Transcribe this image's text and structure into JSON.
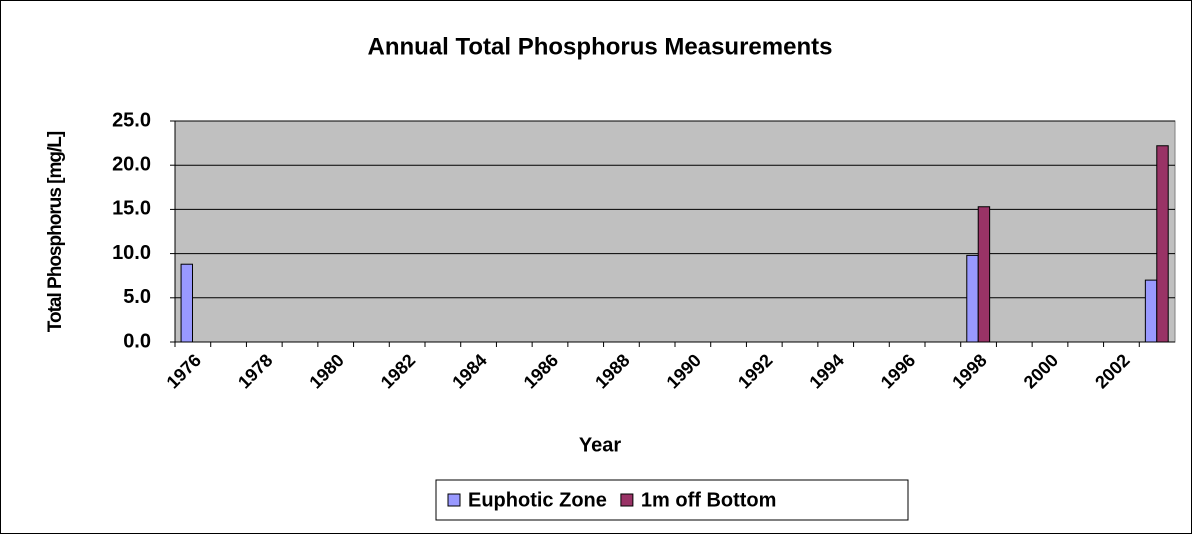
{
  "chart_data": {
    "type": "bar",
    "title": "Annual Total Phosphorus Measurements",
    "x_label": "Year",
    "y_label": "Total Phosphorus [mg/L]",
    "categories": [
      "1976",
      null,
      "1978",
      null,
      "1980",
      null,
      "1982",
      null,
      "1984",
      null,
      "1986",
      null,
      "1988",
      null,
      "1990",
      null,
      "1992",
      null,
      "1994",
      null,
      "1996",
      null,
      "1998",
      null,
      "2000",
      null,
      "2002",
      null
    ],
    "series": [
      {
        "name": "Euphotic Zone",
        "color": "#9999ff",
        "values": [
          8.8,
          null,
          null,
          null,
          null,
          null,
          null,
          null,
          null,
          null,
          null,
          null,
          null,
          null,
          null,
          null,
          null,
          null,
          null,
          null,
          null,
          null,
          9.8,
          null,
          null,
          null,
          null,
          7.0
        ]
      },
      {
        "name": "1m off Bottom",
        "color": "#993366",
        "values": [
          null,
          null,
          null,
          null,
          null,
          null,
          null,
          null,
          null,
          null,
          null,
          null,
          null,
          null,
          null,
          null,
          null,
          null,
          null,
          null,
          null,
          null,
          15.3,
          null,
          null,
          null,
          null,
          22.2
        ]
      }
    ],
    "ylim": [
      0,
      25
    ],
    "yticks": [
      {
        "value": 0,
        "label": "0.0"
      },
      {
        "value": 5,
        "label": "5.0"
      },
      {
        "value": 10,
        "label": "10.0"
      },
      {
        "value": 15,
        "label": "15.0"
      },
      {
        "value": 20,
        "label": "20.0"
      },
      {
        "value": 25,
        "label": "25.0"
      }
    ],
    "grid": true,
    "legend": "bottom"
  }
}
